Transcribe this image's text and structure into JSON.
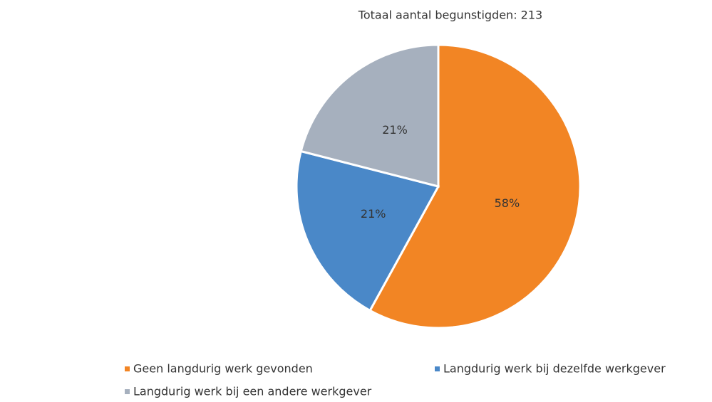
{
  "chart_data": {
    "type": "pie",
    "title": "Totaal aantal begunstigden: 213",
    "categories": [
      "Geen langdurig werk gevonden",
      "Langdurig werk bij dezelfde werkgever",
      "Langdurig werk bij een andere werkgever"
    ],
    "values": [
      58,
      21,
      21
    ],
    "value_labels": [
      "58%",
      "21%",
      "21%"
    ],
    "colors": [
      "#f28524",
      "#4a88c8",
      "#a6b0be"
    ]
  }
}
